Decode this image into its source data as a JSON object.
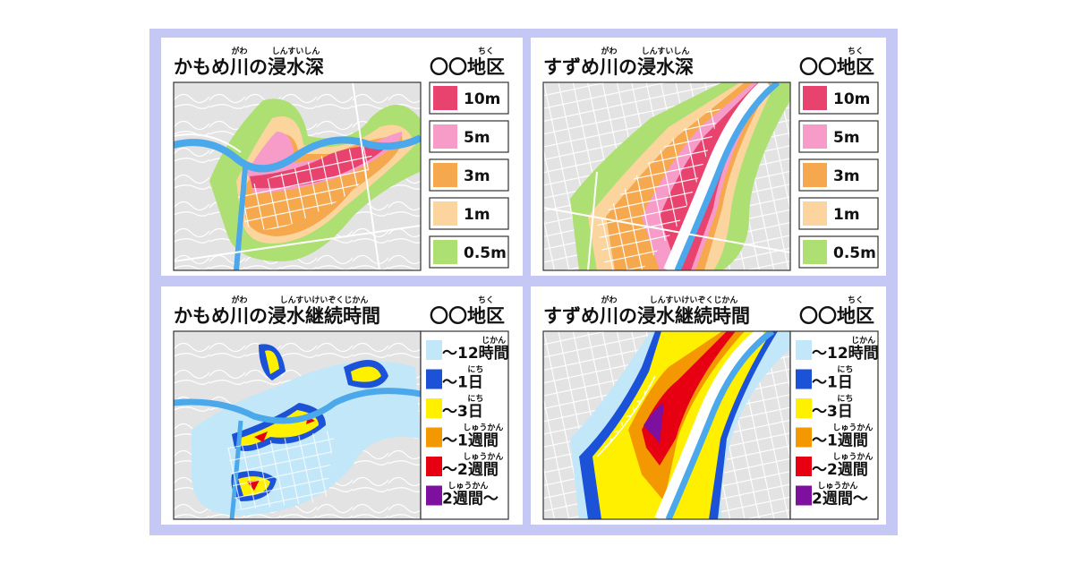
{
  "panels": [
    {
      "title": "かもめ川の浸水深",
      "title_ruby": [
        "がわ",
        "しんすいしん"
      ],
      "district": "〇〇地区",
      "district_ruby": [
        "ちく"
      ],
      "legend": [
        {
          "label": "10m",
          "color": "#e8436f"
        },
        {
          "label": "5m",
          "color": "#f79cc9"
        },
        {
          "label": "3m",
          "color": "#f5a84d"
        },
        {
          "label": "1m",
          "color": "#fbd59d"
        },
        {
          "label": "0.5m",
          "color": "#addf72"
        }
      ]
    },
    {
      "title": "すずめ川の浸水深",
      "title_ruby": [
        "がわ",
        "しんすいしん"
      ],
      "district": "〇〇地区",
      "district_ruby": [
        "ちく"
      ],
      "legend": [
        {
          "label": "10m",
          "color": "#e8436f"
        },
        {
          "label": "5m",
          "color": "#f79cc9"
        },
        {
          "label": "3m",
          "color": "#f5a84d"
        },
        {
          "label": "1m",
          "color": "#fbd59d"
        },
        {
          "label": "0.5m",
          "color": "#addf72"
        }
      ]
    },
    {
      "title": "かもめ川の浸水継続時間",
      "title_ruby": [
        "がわ",
        "しんすいけいぞくじかん"
      ],
      "district": "〇〇地区",
      "district_ruby": [
        "ちく"
      ],
      "legend": [
        {
          "label": "～12時間",
          "ruby": [
            "じかん"
          ],
          "color": "#c2e7f8"
        },
        {
          "label": "～1日",
          "ruby": [
            "にち"
          ],
          "color": "#1b52d8"
        },
        {
          "label": "～3日",
          "ruby": [
            "にち"
          ],
          "color": "#fff000"
        },
        {
          "label": "～1週間",
          "ruby": [
            "しゅうかん"
          ],
          "color": "#f39800"
        },
        {
          "label": "～2週間",
          "ruby": [
            "しゅうかん"
          ],
          "color": "#e60012"
        },
        {
          "label": "2週間～",
          "ruby": [
            "しゅうかん"
          ],
          "color": "#7e109f"
        }
      ]
    },
    {
      "title": "すずめ川の浸水継続時間",
      "title_ruby": [
        "がわ",
        "しんすいけいぞくじかん"
      ],
      "district": "〇〇地区",
      "district_ruby": [
        "ちく"
      ],
      "legend": [
        {
          "label": "～12時間",
          "ruby": [
            "じかん"
          ],
          "color": "#c2e7f8"
        },
        {
          "label": "～1日",
          "ruby": [
            "にち"
          ],
          "color": "#1b52d8"
        },
        {
          "label": "～3日",
          "ruby": [
            "にち"
          ],
          "color": "#fff000"
        },
        {
          "label": "～1週間",
          "ruby": [
            "しゅうかん"
          ],
          "color": "#f39800"
        },
        {
          "label": "～2週間",
          "ruby": [
            "しゅうかん"
          ],
          "color": "#e60012"
        },
        {
          "label": "2週間～",
          "ruby": [
            "しゅうかん"
          ],
          "color": "#7e109f"
        }
      ]
    }
  ]
}
